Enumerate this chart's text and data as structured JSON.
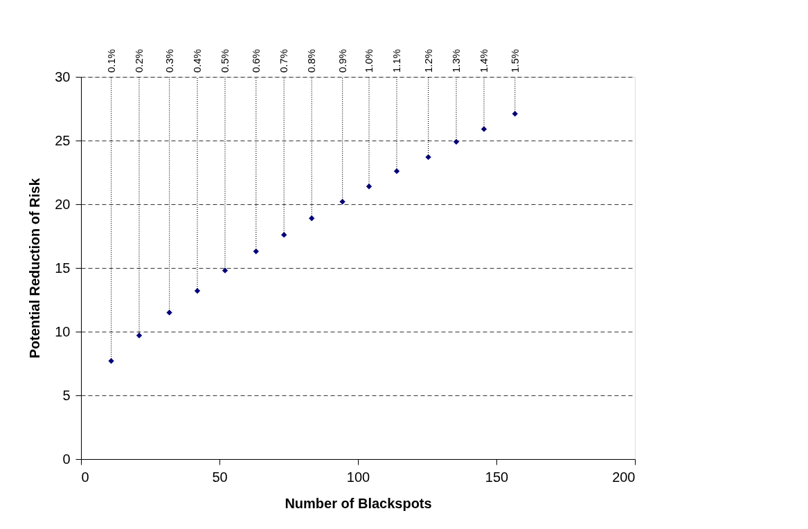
{
  "chart_data": {
    "type": "scatter",
    "xlabel": "Number of Blackspots",
    "ylabel": "Potential Reduction of Risk",
    "x": [
      10.9,
      21,
      31.9,
      42,
      52,
      63.2,
      73.3,
      83.3,
      94.4,
      104,
      114,
      125.4,
      135.5,
      145.5,
      156.7
    ],
    "series": [
      {
        "color": "#000080",
        "values": [
          7.7,
          9.7,
          11.5,
          13.2,
          14.8,
          16.3,
          17.6,
          18.9,
          20.2,
          21.4,
          22.6,
          23.7,
          24.9,
          25.9,
          27.1
        ]
      }
    ],
    "annotations": [
      {
        "text": "0.1%",
        "x": 10.9,
        "y": 7.7
      },
      {
        "text": "0.2%",
        "x": 21,
        "y": 9.7
      },
      {
        "text": "0.3%",
        "x": 31.9,
        "y": 11.5
      },
      {
        "text": "0.4%",
        "x": 42,
        "y": 13.2
      },
      {
        "text": "0.5%",
        "x": 52,
        "y": 14.8
      },
      {
        "text": "0.6%",
        "x": 63.2,
        "y": 16.3
      },
      {
        "text": "0.7%",
        "x": 73.3,
        "y": 17.6
      },
      {
        "text": "0.8%",
        "x": 83.3,
        "y": 18.9
      },
      {
        "text": "0.9%",
        "x": 94.4,
        "y": 20.2
      },
      {
        "text": "1.0%",
        "x": 104,
        "y": 21.4
      },
      {
        "text": "1.1%",
        "x": 114,
        "y": 22.6
      },
      {
        "text": "1.2%",
        "x": 125.4,
        "y": 23.7
      },
      {
        "text": "1.3%",
        "x": 135.5,
        "y": 24.9
      },
      {
        "text": "1.4%",
        "x": 145.5,
        "y": 25.9
      },
      {
        "text": "1.5%",
        "x": 156.7,
        "y": 27.1
      }
    ],
    "xlim": [
      0,
      200
    ],
    "xticks": [
      0,
      50,
      100,
      150,
      200
    ],
    "ylim": [
      0,
      30
    ],
    "yticks": [
      0,
      5,
      10,
      15,
      20,
      25,
      30
    ],
    "grid": "y",
    "marker": "diamond"
  }
}
